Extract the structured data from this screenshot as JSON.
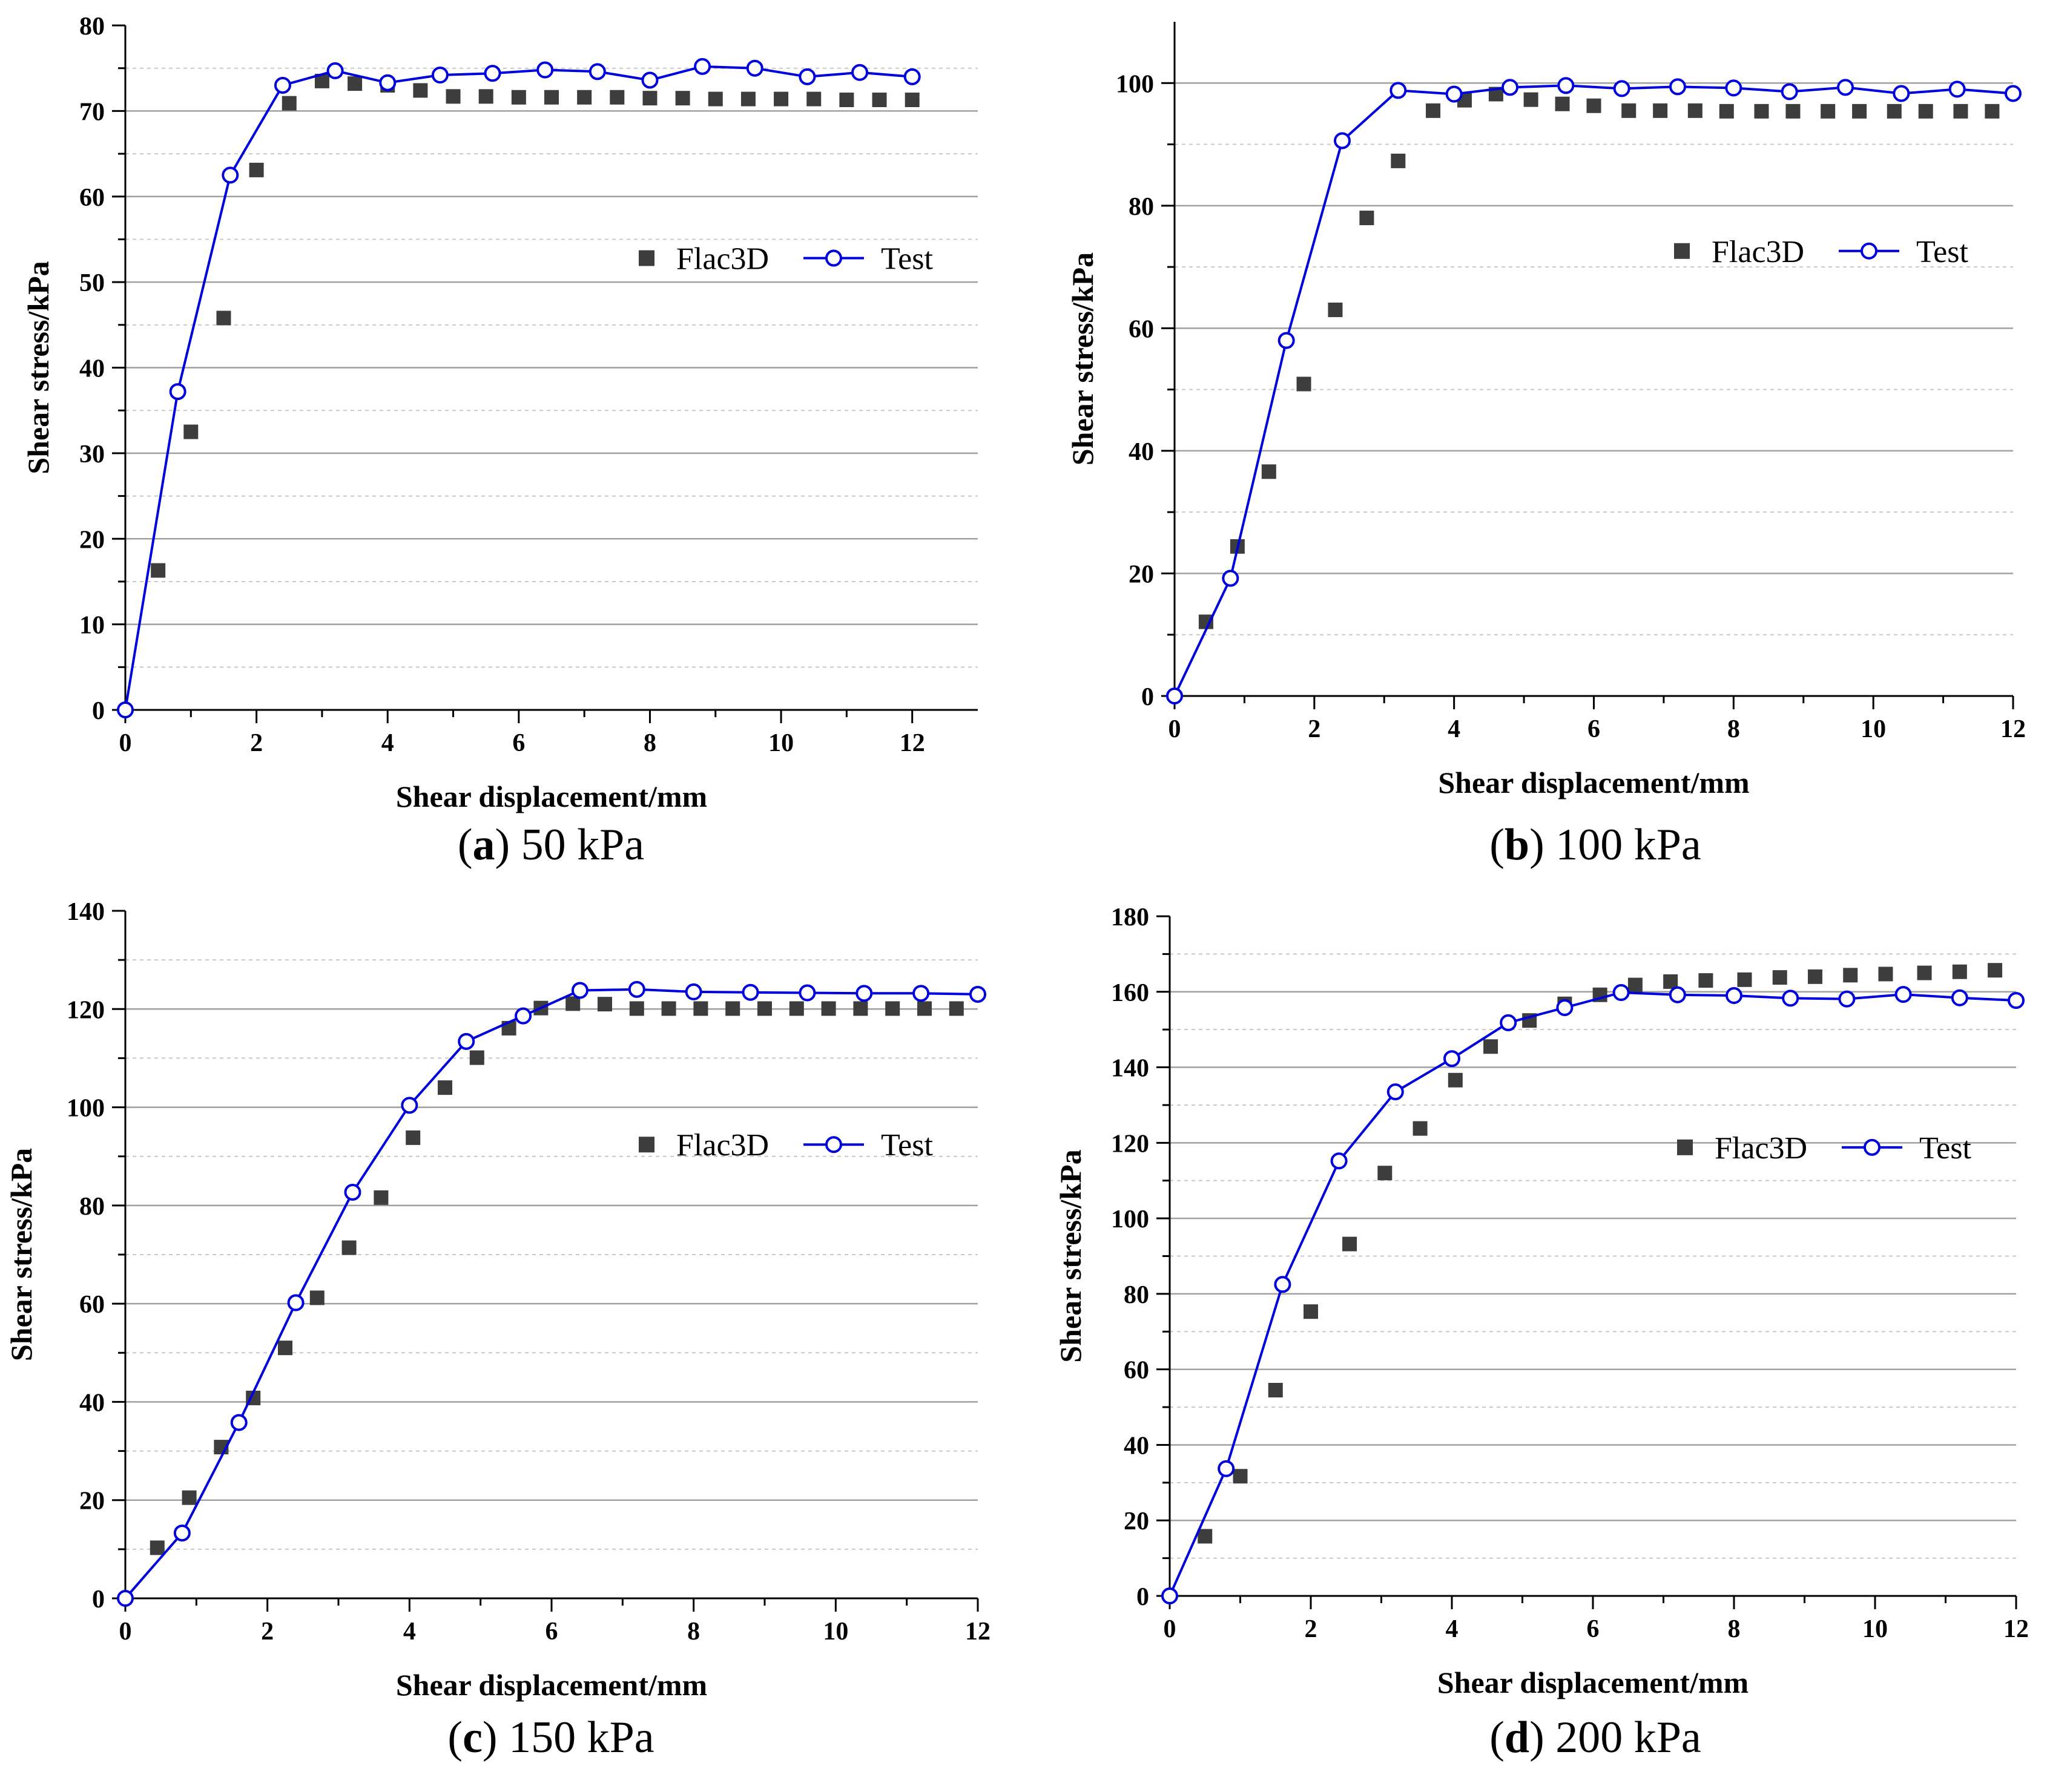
{
  "colors": {
    "flac3d_marker": "#3d3d3d",
    "test_line": "#0000dd",
    "test_marker_fill": "#ffffff",
    "grid": "#a0a0a0",
    "axis": "#000000"
  },
  "legend": {
    "series_a": "Flac3D",
    "series_b": "Test"
  },
  "markers": {
    "flac3d": "filled-square",
    "test": "open-circle"
  },
  "chart_data": [
    {
      "id": "a",
      "type": "scatter",
      "caption_letter": "a",
      "caption_text": " 50 kPa",
      "xlabel": "Shear displacement/mm",
      "ylabel": "Shear stress/kPa",
      "xlim": [
        0,
        13
      ],
      "ylim": [
        0,
        80
      ],
      "xticks": [
        0,
        2,
        4,
        6,
        8,
        10,
        12
      ],
      "yticks": [
        0,
        10,
        20,
        30,
        40,
        50,
        60,
        70,
        80
      ],
      "grid": true,
      "legend_position": "right-middle",
      "series": [
        {
          "name": "Flac3D",
          "style": "markers",
          "x": [
            0.5,
            1.0,
            1.5,
            2.0,
            2.5,
            3.0,
            3.5,
            4.0,
            4.5,
            5.0,
            5.5,
            6.0,
            6.5,
            7.0,
            7.5,
            8.0,
            8.5,
            9.0,
            9.5,
            10.0,
            10.5,
            11.0,
            11.5,
            12.0
          ],
          "y": [
            16.3,
            32.5,
            45.8,
            63.1,
            70.9,
            73.5,
            73.2,
            73.0,
            72.4,
            71.7,
            71.7,
            71.6,
            71.6,
            71.6,
            71.6,
            71.5,
            71.5,
            71.4,
            71.4,
            71.4,
            71.4,
            71.3,
            71.3,
            71.3
          ]
        },
        {
          "name": "Test",
          "style": "line-markers",
          "x": [
            0,
            0.8,
            1.6,
            2.4,
            3.2,
            4.0,
            4.8,
            5.6,
            6.4,
            7.2,
            8.0,
            8.8,
            9.6,
            10.4,
            11.2,
            12.0
          ],
          "y": [
            0,
            37.2,
            62.5,
            73.0,
            74.7,
            73.3,
            74.2,
            74.4,
            74.8,
            74.6,
            73.6,
            75.2,
            75.0,
            74.0,
            74.5,
            74.0
          ]
        }
      ]
    },
    {
      "id": "b",
      "type": "scatter",
      "caption_letter": "b",
      "caption_text": " 100 kPa",
      "xlabel": "Shear displacement/mm",
      "ylabel": "Shear stress/kPa",
      "xlim": [
        0,
        12
      ],
      "ylim": [
        0,
        110
      ],
      "xticks": [
        0,
        2,
        4,
        6,
        8,
        10,
        12
      ],
      "yticks": [
        0,
        20,
        40,
        60,
        80,
        100
      ],
      "grid": true,
      "legend_position": "right-middle",
      "series": [
        {
          "name": "Flac3D",
          "style": "markers",
          "x": [
            0.45,
            0.9,
            1.35,
            1.85,
            2.3,
            2.75,
            3.2,
            3.7,
            4.15,
            4.6,
            5.1,
            5.55,
            6.0,
            6.5,
            6.95,
            7.45,
            7.9,
            8.4,
            8.85,
            9.35,
            9.8,
            10.3,
            10.75,
            11.25,
            11.7
          ],
          "y": [
            12.1,
            24.4,
            36.6,
            50.9,
            63.0,
            78.0,
            87.3,
            95.5,
            97.2,
            98.2,
            97.3,
            96.6,
            96.3,
            95.5,
            95.5,
            95.5,
            95.4,
            95.4,
            95.4,
            95.4,
            95.4,
            95.4,
            95.4,
            95.4,
            95.4
          ]
        },
        {
          "name": "Test",
          "style": "line-markers",
          "x": [
            0,
            0.8,
            1.6,
            2.4,
            3.2,
            4.0,
            4.8,
            5.6,
            6.4,
            7.2,
            8.0,
            8.8,
            9.6,
            10.4,
            11.2,
            12.0
          ],
          "y": [
            0,
            19.2,
            58.0,
            90.6,
            98.8,
            98.2,
            99.3,
            99.6,
            99.1,
            99.4,
            99.2,
            98.6,
            99.3,
            98.3,
            99.0,
            98.3
          ]
        }
      ]
    },
    {
      "id": "c",
      "type": "scatter",
      "caption_letter": "c",
      "caption_text": " 150 kPa",
      "xlabel": "Shear displacement/mm",
      "ylabel": "Shear stress/kPa",
      "xlim": [
        0,
        12
      ],
      "ylim": [
        0,
        140
      ],
      "xticks": [
        0,
        2,
        4,
        6,
        8,
        10,
        12
      ],
      "yticks": [
        0,
        20,
        40,
        60,
        80,
        100,
        120,
        140
      ],
      "grid": true,
      "legend_position": "right-middle",
      "series": [
        {
          "name": "Flac3D",
          "style": "markers",
          "x": [
            0.45,
            0.9,
            1.35,
            1.8,
            2.25,
            2.7,
            3.15,
            3.6,
            4.05,
            4.5,
            4.95,
            5.4,
            5.85,
            6.3,
            6.75,
            7.2,
            7.65,
            8.1,
            8.55,
            9.0,
            9.45,
            9.9,
            10.35,
            10.8,
            11.25,
            11.7
          ],
          "y": [
            10.3,
            20.5,
            30.8,
            40.8,
            51.0,
            61.2,
            71.4,
            81.6,
            93.8,
            104.0,
            110.1,
            116.1,
            120.2,
            121.1,
            121.0,
            120.1,
            120.1,
            120.1,
            120.1,
            120.1,
            120.1,
            120.1,
            120.1,
            120.1,
            120.1,
            120.1
          ]
        },
        {
          "name": "Test",
          "style": "line-markers",
          "x": [
            0,
            0.8,
            1.6,
            2.4,
            3.2,
            4.0,
            4.8,
            5.6,
            6.4,
            7.2,
            8.0,
            8.8,
            9.6,
            10.4,
            11.2,
            12.0
          ],
          "y": [
            0,
            13.3,
            35.8,
            60.2,
            82.7,
            100.4,
            113.4,
            118.6,
            123.8,
            124.0,
            123.5,
            123.4,
            123.3,
            123.2,
            123.2,
            123.0
          ]
        }
      ]
    },
    {
      "id": "d",
      "type": "scatter",
      "caption_letter": "d",
      "caption_text": " 200 kPa",
      "xlabel": "Shear displacement/mm",
      "ylabel": "Shear stress/kPa",
      "xlim": [
        0,
        12
      ],
      "ylim": [
        0,
        180
      ],
      "xticks": [
        0,
        2,
        4,
        6,
        8,
        10,
        12
      ],
      "yticks": [
        0,
        20,
        40,
        60,
        80,
        100,
        120,
        140,
        160,
        180
      ],
      "grid": true,
      "legend_position": "right-middle",
      "series": [
        {
          "name": "Flac3D",
          "style": "markers",
          "x": [
            0.5,
            1.0,
            1.5,
            2.0,
            2.55,
            3.05,
            3.55,
            4.05,
            4.55,
            5.1,
            5.6,
            6.1,
            6.6,
            7.1,
            7.6,
            8.15,
            8.65,
            9.15,
            9.65,
            10.15,
            10.7,
            11.2,
            11.7
          ],
          "y": [
            15.8,
            31.7,
            54.5,
            75.3,
            93.2,
            112.0,
            123.8,
            136.6,
            145.5,
            152.4,
            156.8,
            159.2,
            161.8,
            162.7,
            163.0,
            163.2,
            163.8,
            164.0,
            164.4,
            164.7,
            165.0,
            165.3,
            165.7
          ]
        },
        {
          "name": "Test",
          "style": "line-markers",
          "x": [
            0,
            0.8,
            1.6,
            2.4,
            3.2,
            4.0,
            4.8,
            5.6,
            6.4,
            7.2,
            8.0,
            8.8,
            9.6,
            10.4,
            11.2,
            12.0
          ],
          "y": [
            0,
            33.7,
            82.5,
            115.2,
            133.5,
            142.3,
            151.8,
            155.8,
            159.8,
            159.2,
            159.0,
            158.3,
            158.1,
            159.3,
            158.4,
            157.7
          ]
        }
      ]
    }
  ]
}
